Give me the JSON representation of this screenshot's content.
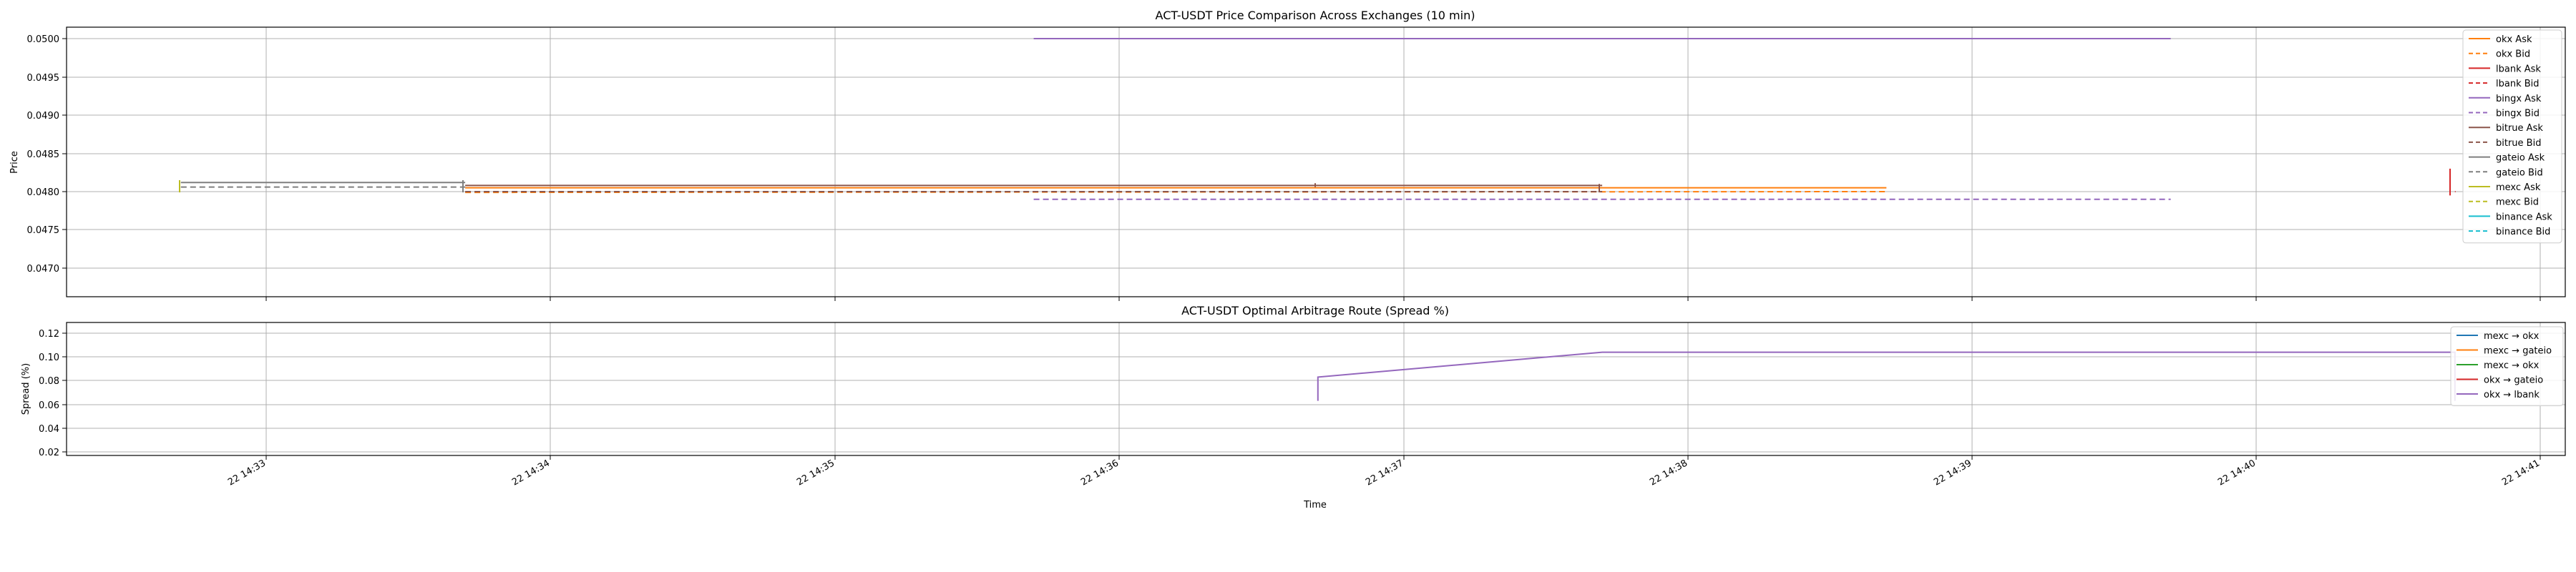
{
  "chart_data": [
    {
      "type": "line",
      "title": "ACT-USDT Price Comparison Across Exchanges (10 min)",
      "xlabel": "",
      "ylabel": "Price",
      "xlim": [
        "2025-?-22 14:32:15",
        "2025-?-22 14:41:05"
      ],
      "ylim": [
        0.04665,
        0.05015
      ],
      "yticks": [
        "0.0470",
        "0.0475",
        "0.0480",
        "0.0485",
        "0.0490",
        "0.0495",
        "0.0500"
      ],
      "grid": true,
      "legend_position": "top-right",
      "series": [
        {
          "name": "okx Ask",
          "color": "#ff7f0e",
          "style": "solid",
          "points": [
            [
              "14:33:42",
              0.04805
            ],
            [
              "14:38:42",
              0.04805
            ]
          ]
        },
        {
          "name": "okx Bid",
          "color": "#ff7f0e",
          "style": "dashed",
          "points": [
            [
              "14:33:42",
              0.04799
            ],
            [
              "14:38:42",
              0.048
            ]
          ]
        },
        {
          "name": "lbank Ask",
          "color": "#d62728",
          "style": "solid",
          "points": [
            [
              "14:40:42",
              0.0481
            ],
            [
              "14:40:42",
              0.0481
            ],
            [
              "14:40:42",
              0.0481
            ]
          ]
        },
        {
          "name": "lbank Bid",
          "color": "#d62728",
          "style": "dashed",
          "points": [
            [
              "14:40:42",
              0.048
            ],
            [
              "14:40:42",
              0.048
            ]
          ]
        },
        {
          "name": "bingx Ask",
          "color": "#9467bd",
          "style": "solid",
          "points": [
            [
              "14:35:42",
              0.05
            ],
            [
              "14:39:42",
              0.05
            ]
          ]
        },
        {
          "name": "bingx Bid",
          "color": "#9467bd",
          "style": "dashed",
          "points": [
            [
              "14:35:42",
              0.0479
            ],
            [
              "14:39:42",
              0.0479
            ]
          ]
        },
        {
          "name": "bitrue Ask",
          "color": "#8c564b",
          "style": "solid",
          "points": [
            [
              "14:33:42",
              0.04808
            ],
            [
              "14:37:42",
              0.04808
            ]
          ]
        },
        {
          "name": "bitrue Bid",
          "color": "#8c564b",
          "style": "dashed",
          "points": [
            [
              "14:33:42",
              0.048
            ],
            [
              "14:37:42",
              0.048
            ]
          ]
        },
        {
          "name": "gateio Ask",
          "color": "#7f7f7f",
          "style": "solid",
          "points": [
            [
              "14:32:42",
              0.04812
            ],
            [
              "14:33:42",
              0.04812
            ]
          ]
        },
        {
          "name": "gateio Bid",
          "color": "#7f7f7f",
          "style": "dashed",
          "points": [
            [
              "14:32:42",
              0.04806
            ],
            [
              "14:33:42",
              0.04806
            ]
          ]
        },
        {
          "name": "mexc Ask",
          "color": "#bcbd22",
          "style": "solid",
          "points": [
            [
              "14:32:42",
              0.0481
            ],
            [
              "14:32:42",
              0.0481
            ]
          ]
        },
        {
          "name": "mexc Bid",
          "color": "#bcbd22",
          "style": "dashed",
          "points": [
            [
              "14:32:42",
              0.048
            ],
            [
              "14:32:42",
              0.048
            ]
          ]
        },
        {
          "name": "binance Ask",
          "color": "#17becf",
          "style": "solid",
          "points": []
        },
        {
          "name": "binance Bid",
          "color": "#17becf",
          "style": "dashed",
          "points": []
        }
      ]
    },
    {
      "type": "line",
      "title": "ACT-USDT Optimal Arbitrage Route (Spread %)",
      "xlabel": "Time",
      "ylabel": "Spread (%)",
      "xlim": [
        "2025-?-22 14:32:15",
        "2025-?-22 14:41:05"
      ],
      "ylim": [
        0.015,
        0.13
      ],
      "yticks": [
        "0.02",
        "0.04",
        "0.06",
        "0.08",
        "0.10",
        "0.12"
      ],
      "xticks": [
        "22 14:33",
        "22 14:34",
        "22 14:35",
        "22 14:36",
        "22 14:37",
        "22 14:38",
        "22 14:39",
        "22 14:40",
        "22 14:41"
      ],
      "grid": true,
      "legend_position": "top-right",
      "series": [
        {
          "name": "mexc → okx",
          "color": "#1f77b4",
          "points": []
        },
        {
          "name": "mexc → gateio",
          "color": "#ff7f0e",
          "points": []
        },
        {
          "name": "mexc → okx",
          "color": "#2ca02c",
          "points": []
        },
        {
          "name": "okx → gateio",
          "color": "#d62728",
          "points": []
        },
        {
          "name": "okx → lbank",
          "color": "#9467bd",
          "points": [
            [
              "14:36:42",
              0.063
            ],
            [
              "14:36:42",
              0.083
            ],
            [
              "14:37:42",
              0.104
            ],
            [
              "14:40:42",
              0.104
            ],
            [
              "14:40:42",
              0.063
            ]
          ]
        }
      ]
    }
  ]
}
